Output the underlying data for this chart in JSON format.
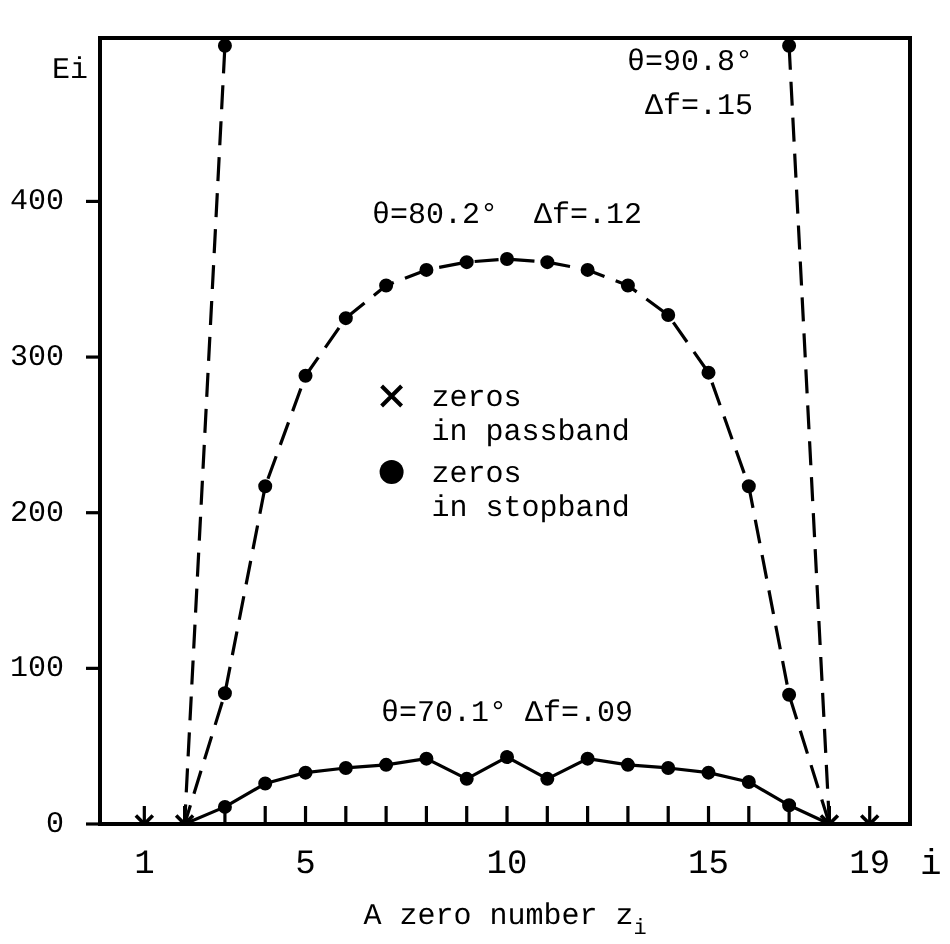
{
  "chart_data": {
    "type": "line",
    "xlabel": "A zero number z$_{i}$",
    "ylabel": "Ei",
    "x": [
      1,
      2,
      3,
      4,
      5,
      6,
      7,
      8,
      9,
      10,
      11,
      12,
      13,
      14,
      15,
      16,
      17,
      18,
      19
    ],
    "xlim": [
      -0.1,
      20
    ],
    "ylim": [
      0,
      505
    ],
    "xticks": [
      1,
      {
        "value": 2,
        "label": null
      },
      {
        "value": 3,
        "label": null
      },
      {
        "value": 4,
        "label": null
      },
      5,
      {
        "value": 6,
        "label": null
      },
      {
        "value": 7,
        "label": null
      },
      {
        "value": 8,
        "label": null
      },
      {
        "value": 9,
        "label": null
      },
      10,
      {
        "value": 11,
        "label": null
      },
      {
        "value": 12,
        "label": null
      },
      {
        "value": 13,
        "label": null
      },
      {
        "value": 14,
        "label": null
      },
      15,
      {
        "value": 16,
        "label": null
      },
      {
        "value": 17,
        "label": null
      },
      {
        "value": 18,
        "label": null
      },
      19
    ],
    "yticks": [
      0,
      100,
      200,
      300,
      400
    ],
    "grid": false,
    "legend": "center",
    "marker": "none",
    "series": [
      {
        "name": "θ=90.8°\nΔf=.15",
        "color": "#000000",
        "line_style": "dashed",
        "values": [
          0,
          0,
          500,
          null,
          null,
          null,
          null,
          null,
          null,
          null,
          null,
          null,
          null,
          null,
          null,
          null,
          500,
          0,
          0
        ]
      },
      {
        "name": "θ=80.2°  Δf=.12",
        "color": "#000000",
        "line_style": "dashed",
        "values": [
          0,
          0,
          84,
          217,
          288,
          325,
          346,
          356,
          361,
          363,
          361,
          356,
          346,
          327,
          290,
          217,
          83,
          0,
          0
        ]
      },
      {
        "name": "θ=70.1° Δf=.09",
        "color": "#000000",
        "line_style": "solid",
        "values": [
          0,
          0,
          11,
          26,
          33,
          36,
          38,
          42,
          29,
          43,
          29,
          42,
          38,
          36,
          33,
          27,
          12,
          0,
          0
        ]
      },
      {
        "type": "scatter",
        "name": "zeros in passband",
        "color": "#000000",
        "marker": "cross",
        "x": [
          1,
          2,
          18,
          19
        ],
        "values": [
          0,
          0,
          0,
          0
        ]
      },
      {
        "type": "scatter",
        "name": "zeros in stopband",
        "color": "#000000",
        "marker": "circle",
        "x": [
          3,
          17,
          3,
          4,
          5,
          6,
          7,
          8,
          9,
          10,
          11,
          12,
          13,
          14,
          15,
          16,
          17,
          3,
          4,
          5,
          6,
          7,
          8,
          9,
          10,
          11,
          12,
          13,
          14,
          15,
          16,
          17
        ],
        "values": [
          500,
          500,
          84,
          217,
          288,
          325,
          346,
          356,
          361,
          363,
          361,
          356,
          346,
          327,
          290,
          217,
          83,
          11,
          26,
          33,
          36,
          38,
          42,
          29,
          43,
          29,
          42,
          38,
          36,
          33,
          27,
          12
        ]
      }
    ],
    "annotations": [
      "i"
    ]
  }
}
